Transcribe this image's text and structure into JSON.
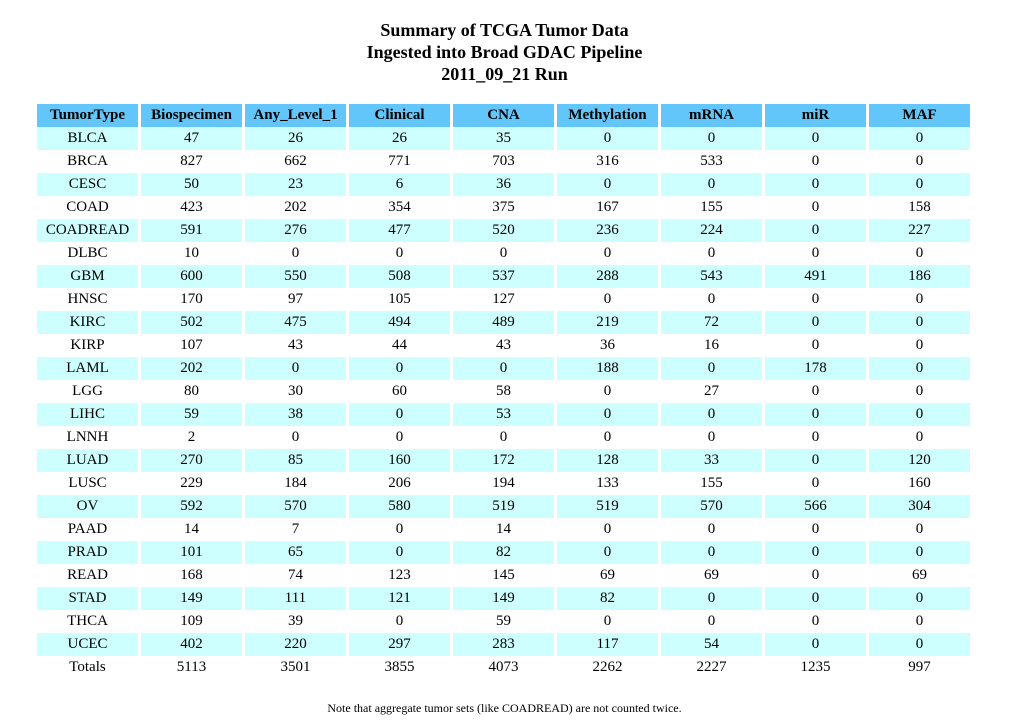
{
  "title": {
    "line1": "Summary of TCGA Tumor Data",
    "line2": "Ingested into Broad GDAC Pipeline",
    "line3": "2011_09_21 Run"
  },
  "table": {
    "columns": [
      "TumorType",
      "Biospecimen",
      "Any_Level_1",
      "Clinical",
      "CNA",
      "Methylation",
      "mRNA",
      "miR",
      "MAF"
    ],
    "rows": [
      [
        "BLCA",
        "47",
        "26",
        "26",
        "35",
        "0",
        "0",
        "0",
        "0"
      ],
      [
        "BRCA",
        "827",
        "662",
        "771",
        "703",
        "316",
        "533",
        "0",
        "0"
      ],
      [
        "CESC",
        "50",
        "23",
        "6",
        "36",
        "0",
        "0",
        "0",
        "0"
      ],
      [
        "COAD",
        "423",
        "202",
        "354",
        "375",
        "167",
        "155",
        "0",
        "158"
      ],
      [
        "COADREAD",
        "591",
        "276",
        "477",
        "520",
        "236",
        "224",
        "0",
        "227"
      ],
      [
        "DLBC",
        "10",
        "0",
        "0",
        "0",
        "0",
        "0",
        "0",
        "0"
      ],
      [
        "GBM",
        "600",
        "550",
        "508",
        "537",
        "288",
        "543",
        "491",
        "186"
      ],
      [
        "HNSC",
        "170",
        "97",
        "105",
        "127",
        "0",
        "0",
        "0",
        "0"
      ],
      [
        "KIRC",
        "502",
        "475",
        "494",
        "489",
        "219",
        "72",
        "0",
        "0"
      ],
      [
        "KIRP",
        "107",
        "43",
        "44",
        "43",
        "36",
        "16",
        "0",
        "0"
      ],
      [
        "LAML",
        "202",
        "0",
        "0",
        "0",
        "188",
        "0",
        "178",
        "0"
      ],
      [
        "LGG",
        "80",
        "30",
        "60",
        "58",
        "0",
        "27",
        "0",
        "0"
      ],
      [
        "LIHC",
        "59",
        "38",
        "0",
        "53",
        "0",
        "0",
        "0",
        "0"
      ],
      [
        "LNNH",
        "2",
        "0",
        "0",
        "0",
        "0",
        "0",
        "0",
        "0"
      ],
      [
        "LUAD",
        "270",
        "85",
        "160",
        "172",
        "128",
        "33",
        "0",
        "120"
      ],
      [
        "LUSC",
        "229",
        "184",
        "206",
        "194",
        "133",
        "155",
        "0",
        "160"
      ],
      [
        "OV",
        "592",
        "570",
        "580",
        "519",
        "519",
        "570",
        "566",
        "304"
      ],
      [
        "PAAD",
        "14",
        "7",
        "0",
        "14",
        "0",
        "0",
        "0",
        "0"
      ],
      [
        "PRAD",
        "101",
        "65",
        "0",
        "82",
        "0",
        "0",
        "0",
        "0"
      ],
      [
        "READ",
        "168",
        "74",
        "123",
        "145",
        "69",
        "69",
        "0",
        "69"
      ],
      [
        "STAD",
        "149",
        "111",
        "121",
        "149",
        "82",
        "0",
        "0",
        "0"
      ],
      [
        "THCA",
        "109",
        "39",
        "0",
        "59",
        "0",
        "0",
        "0",
        "0"
      ],
      [
        "UCEC",
        "402",
        "220",
        "297",
        "283",
        "117",
        "54",
        "0",
        "0"
      ]
    ],
    "totals": [
      "Totals",
      "5113",
      "3501",
      "3855",
      "4073",
      "2262",
      "2227",
      "1235",
      "997"
    ]
  },
  "note": "Note that aggregate tumor sets (like COADREAD) are not counted twice.",
  "colors": {
    "header_bg": "#62c6fa",
    "stripe_bg": "#ccfffd"
  }
}
